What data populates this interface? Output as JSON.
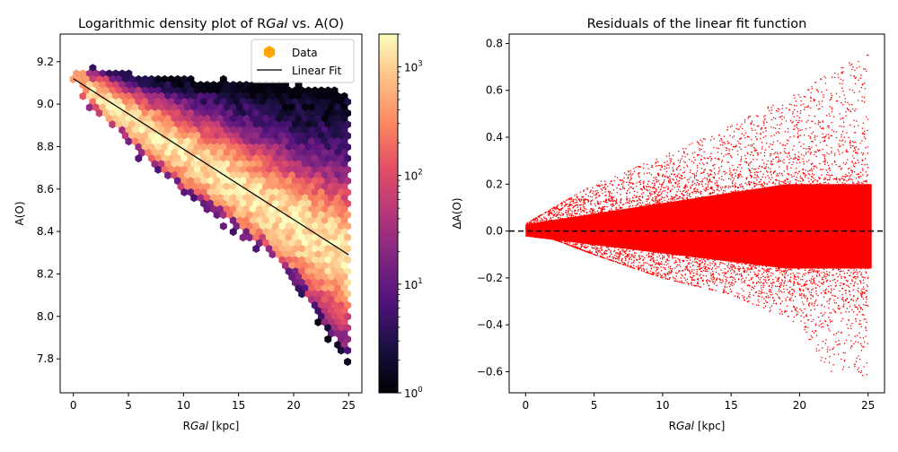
{
  "chart_data": [
    {
      "type": "hexbin",
      "title": "Logarithmic density plot of RGal vs. A(O)",
      "title_parts": {
        "prefix": "Logarithmic density plot of R",
        "italic": "Gal",
        "suffix": " vs. A(O)"
      },
      "xlabel": "RGal [kpc]",
      "xlabel_parts": {
        "prefix": "R",
        "italic": "Gal",
        "suffix": " [kpc]"
      },
      "ylabel": "A(O)",
      "xlim": [
        -1.2,
        26.2
      ],
      "ylim": [
        7.64,
        9.33
      ],
      "xticks": [
        0,
        5,
        10,
        15,
        20,
        25
      ],
      "yticks": [
        7.8,
        8.0,
        8.2,
        8.4,
        8.6,
        8.8,
        9.0,
        9.2
      ],
      "ytick_labels": [
        "7.8",
        "8.0",
        "8.2",
        "8.4",
        "8.6",
        "8.8",
        "9.0",
        "9.2"
      ],
      "colormap": "magma",
      "colorbar": {
        "scale": "log",
        "range": [
          1,
          2000
        ],
        "ticks": [
          1,
          10,
          100,
          1000
        ],
        "tick_labels": [
          "10",
          "10",
          "10",
          "10"
        ],
        "tick_exponents": [
          "0",
          "1",
          "2",
          "3"
        ]
      },
      "data_envelope": {
        "upper": [
          [
            0,
            9.17
          ],
          [
            2,
            9.17
          ],
          [
            5,
            9.14
          ],
          [
            10,
            9.12
          ],
          [
            15,
            9.11
          ],
          [
            20,
            9.09
          ],
          [
            25,
            9.07
          ]
        ],
        "lower": [
          [
            0,
            9.1
          ],
          [
            3,
            8.9
          ],
          [
            6,
            8.76
          ],
          [
            9,
            8.62
          ],
          [
            13,
            8.47
          ],
          [
            17,
            8.33
          ],
          [
            20,
            8.18
          ],
          [
            22,
            8.02
          ],
          [
            23,
            7.92
          ],
          [
            25,
            7.78
          ]
        ]
      },
      "series": [
        {
          "name": "Data",
          "marker": "hexagon",
          "color": "#ffa500"
        },
        {
          "name": "Linear Fit",
          "color": "#000000",
          "x": [
            0,
            25
          ],
          "y": [
            9.12,
            8.29
          ]
        }
      ],
      "legend": {
        "location": "top-right",
        "entries": [
          "Data",
          "Linear Fit"
        ]
      }
    },
    {
      "type": "scatter",
      "title": "Residuals of the linear fit function",
      "xlabel": "RGal [kpc]",
      "xlabel_parts": {
        "prefix": "R",
        "italic": "Gal",
        "suffix": " [kpc]"
      },
      "ylabel": "ΔA(O)",
      "xlim": [
        -1.2,
        26.2
      ],
      "ylim": [
        -0.69,
        0.84
      ],
      "xticks": [
        0,
        5,
        10,
        15,
        20,
        25
      ],
      "yticks": [
        -0.6,
        -0.4,
        -0.2,
        0.0,
        0.2,
        0.4,
        0.6,
        0.8
      ],
      "ytick_labels": [
        "−0.6",
        "−0.4",
        "−0.2",
        "0.0",
        "0.2",
        "0.4",
        "0.6",
        "0.8"
      ],
      "point_color": "#ff0000",
      "residual_envelope": {
        "x": [
          0,
          5,
          10,
          15,
          20,
          22,
          25
        ],
        "upper": [
          0.03,
          0.2,
          0.32,
          0.45,
          0.6,
          0.67,
          0.76
        ],
        "lower": [
          0.01,
          -0.1,
          -0.2,
          -0.27,
          -0.4,
          -0.6,
          -0.62
        ]
      },
      "reference_line": {
        "y": 0,
        "style": "dashed",
        "color": "#000000"
      }
    }
  ]
}
